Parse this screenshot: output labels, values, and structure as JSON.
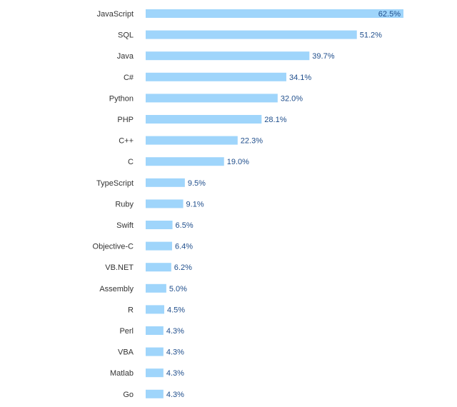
{
  "colors": {
    "bar": "#9fd5fb",
    "category_text": "#333333",
    "value_text": "#1f4e8c",
    "background": "#ffffff"
  },
  "chart_data": {
    "type": "bar",
    "orientation": "horizontal",
    "title": "",
    "xlabel": "",
    "ylabel": "",
    "grid": false,
    "legend": "none",
    "value_suffix": "%",
    "xlim": [
      0,
      62.5
    ],
    "categories": [
      "JavaScript",
      "SQL",
      "Java",
      "C#",
      "Python",
      "PHP",
      "C++",
      "C",
      "TypeScript",
      "Ruby",
      "Swift",
      "Objective-C",
      "VB.NET",
      "Assembly",
      "R",
      "Perl",
      "VBA",
      "Matlab",
      "Go"
    ],
    "values": [
      62.5,
      51.2,
      39.7,
      34.1,
      32.0,
      28.1,
      22.3,
      19.0,
      9.5,
      9.1,
      6.5,
      6.4,
      6.2,
      5.0,
      4.5,
      4.3,
      4.3,
      4.3,
      4.3
    ],
    "value_labels": [
      "62.5%",
      "51.2%",
      "39.7%",
      "34.1%",
      "32.0%",
      "28.1%",
      "22.3%",
      "19.0%",
      "9.5%",
      "9.1%",
      "6.5%",
      "6.4%",
      "6.2%",
      "5.0%",
      "4.5%",
      "4.3%",
      "4.3%",
      "4.3%",
      "4.3%"
    ]
  }
}
